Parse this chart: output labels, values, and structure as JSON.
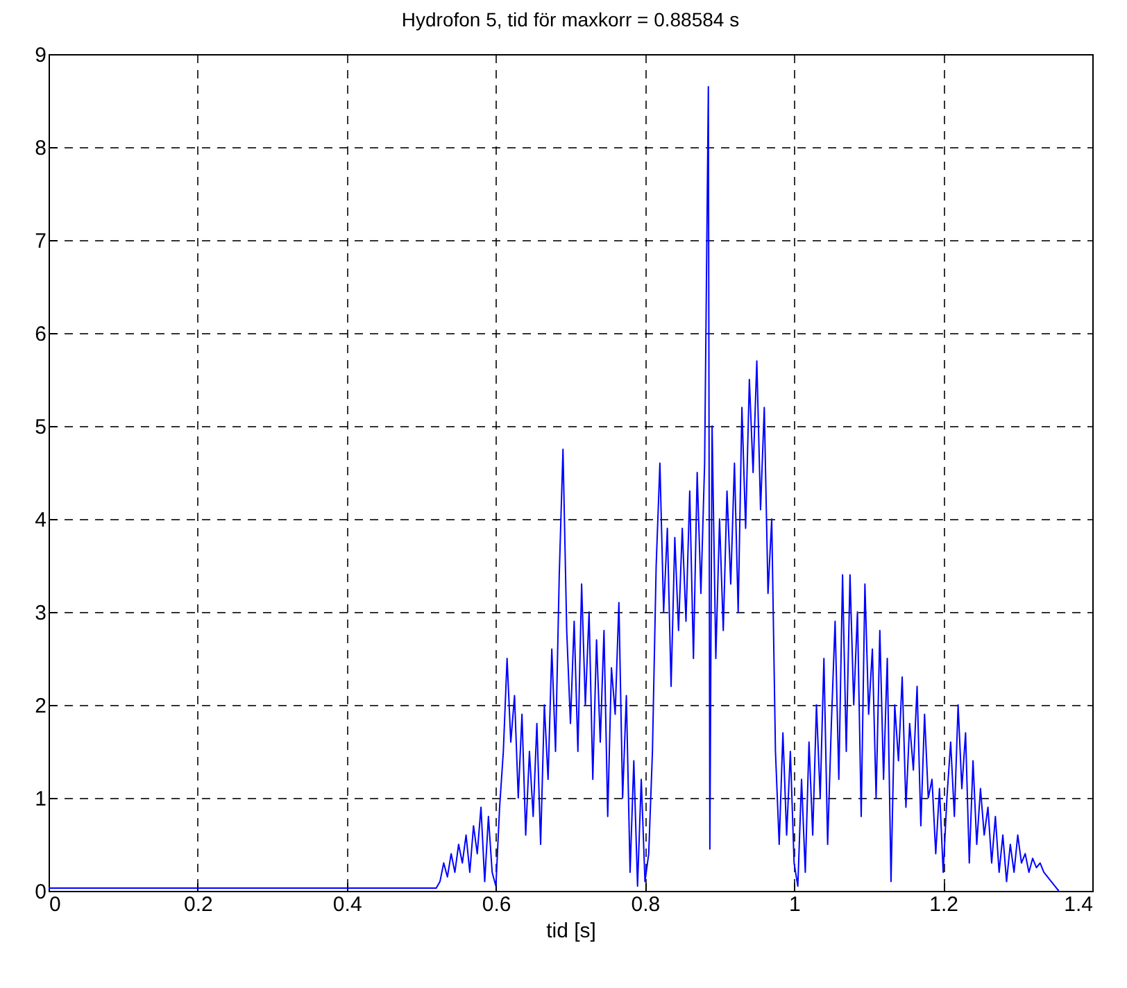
{
  "chart_data": {
    "type": "line",
    "title": "Hydrofon 5, tid för maxkorr = 0.88584 s",
    "xlabel": "tid [s]",
    "x": [
      0,
      0.52,
      0.525,
      0.53,
      0.535,
      0.54,
      0.545,
      0.55,
      0.555,
      0.56,
      0.565,
      0.57,
      0.575,
      0.58,
      0.585,
      0.59,
      0.595,
      0.6,
      0.605,
      0.61,
      0.615,
      0.62,
      0.625,
      0.63,
      0.635,
      0.64,
      0.645,
      0.65,
      0.655,
      0.66,
      0.665,
      0.67,
      0.675,
      0.68,
      0.685,
      0.69,
      0.695,
      0.7,
      0.705,
      0.71,
      0.715,
      0.72,
      0.725,
      0.73,
      0.735,
      0.74,
      0.745,
      0.75,
      0.755,
      0.76,
      0.765,
      0.77,
      0.775,
      0.78,
      0.785,
      0.79,
      0.795,
      0.8,
      0.805,
      0.81,
      0.815,
      0.82,
      0.825,
      0.83,
      0.835,
      0.84,
      0.845,
      0.85,
      0.855,
      0.86,
      0.865,
      0.87,
      0.875,
      0.88,
      0.885,
      0.887,
      0.89,
      0.895,
      0.9,
      0.905,
      0.91,
      0.915,
      0.92,
      0.925,
      0.93,
      0.935,
      0.94,
      0.945,
      0.95,
      0.955,
      0.96,
      0.965,
      0.97,
      0.975,
      0.98,
      0.985,
      0.99,
      0.995,
      1.0,
      1.005,
      1.01,
      1.015,
      1.02,
      1.025,
      1.03,
      1.035,
      1.04,
      1.045,
      1.05,
      1.055,
      1.06,
      1.065,
      1.07,
      1.075,
      1.08,
      1.085,
      1.09,
      1.095,
      1.1,
      1.105,
      1.11,
      1.115,
      1.12,
      1.125,
      1.13,
      1.135,
      1.14,
      1.145,
      1.15,
      1.155,
      1.16,
      1.165,
      1.17,
      1.175,
      1.18,
      1.185,
      1.19,
      1.195,
      1.2,
      1.205,
      1.21,
      1.215,
      1.22,
      1.225,
      1.23,
      1.235,
      1.24,
      1.245,
      1.25,
      1.255,
      1.26,
      1.265,
      1.27,
      1.275,
      1.28,
      1.285,
      1.29,
      1.295,
      1.3,
      1.305,
      1.31,
      1.315,
      1.32,
      1.325,
      1.33,
      1.335,
      1.34,
      1.345,
      1.35,
      1.355
    ],
    "series": [
      {
        "color": "#0000ff",
        "values": [
          0.03,
          0.03,
          0.1,
          0.3,
          0.15,
          0.4,
          0.2,
          0.5,
          0.3,
          0.6,
          0.2,
          0.7,
          0.4,
          0.9,
          0.1,
          0.8,
          0.2,
          0.05,
          0.9,
          1.5,
          2.5,
          1.6,
          2.1,
          1.0,
          1.9,
          0.6,
          1.5,
          0.8,
          1.8,
          0.5,
          2.0,
          1.2,
          2.6,
          1.5,
          3.4,
          4.75,
          2.8,
          1.8,
          2.9,
          1.5,
          3.3,
          2.0,
          3.0,
          1.2,
          2.7,
          1.6,
          2.8,
          0.8,
          2.4,
          1.9,
          3.1,
          1.0,
          2.1,
          0.2,
          1.4,
          0.05,
          1.2,
          0.1,
          0.4,
          1.5,
          3.5,
          4.6,
          3.0,
          3.9,
          2.2,
          3.8,
          2.8,
          3.9,
          2.9,
          4.3,
          2.5,
          4.5,
          3.2,
          4.6,
          8.65,
          0.45,
          5.0,
          2.5,
          4.0,
          2.8,
          4.3,
          3.3,
          4.6,
          3.0,
          5.2,
          3.9,
          5.5,
          4.5,
          5.7,
          4.1,
          5.2,
          3.2,
          4.0,
          1.5,
          0.5,
          1.7,
          0.6,
          1.5,
          0.3,
          0.05,
          1.2,
          0.2,
          1.6,
          0.6,
          2.0,
          1.0,
          2.5,
          0.5,
          1.8,
          2.9,
          1.2,
          3.4,
          1.5,
          3.4,
          2.0,
          3.0,
          0.8,
          3.3,
          1.9,
          2.6,
          1.0,
          2.8,
          1.2,
          2.5,
          0.1,
          2.0,
          1.4,
          2.3,
          0.9,
          1.8,
          1.3,
          2.2,
          0.7,
          1.9,
          1.0,
          1.2,
          0.4,
          1.1,
          0.2,
          1.0,
          1.6,
          0.8,
          2.0,
          1.1,
          1.7,
          0.3,
          1.4,
          0.5,
          1.1,
          0.6,
          0.9,
          0.3,
          0.8,
          0.2,
          0.6,
          0.1,
          0.5,
          0.2,
          0.6,
          0.3,
          0.4,
          0.2,
          0.35,
          0.25,
          0.3,
          0.2,
          0.15,
          0.1,
          0.05,
          0.0
        ]
      }
    ],
    "xlim": [
      0,
      1.4
    ],
    "xticks": [
      0,
      0.2,
      0.4,
      0.6,
      0.8,
      1,
      1.2,
      1.4
    ],
    "ylim": [
      0,
      9
    ],
    "yticks": [
      0,
      1,
      2,
      3,
      4,
      5,
      6,
      7,
      8,
      9
    ],
    "grid": true,
    "line_style": "solid"
  }
}
